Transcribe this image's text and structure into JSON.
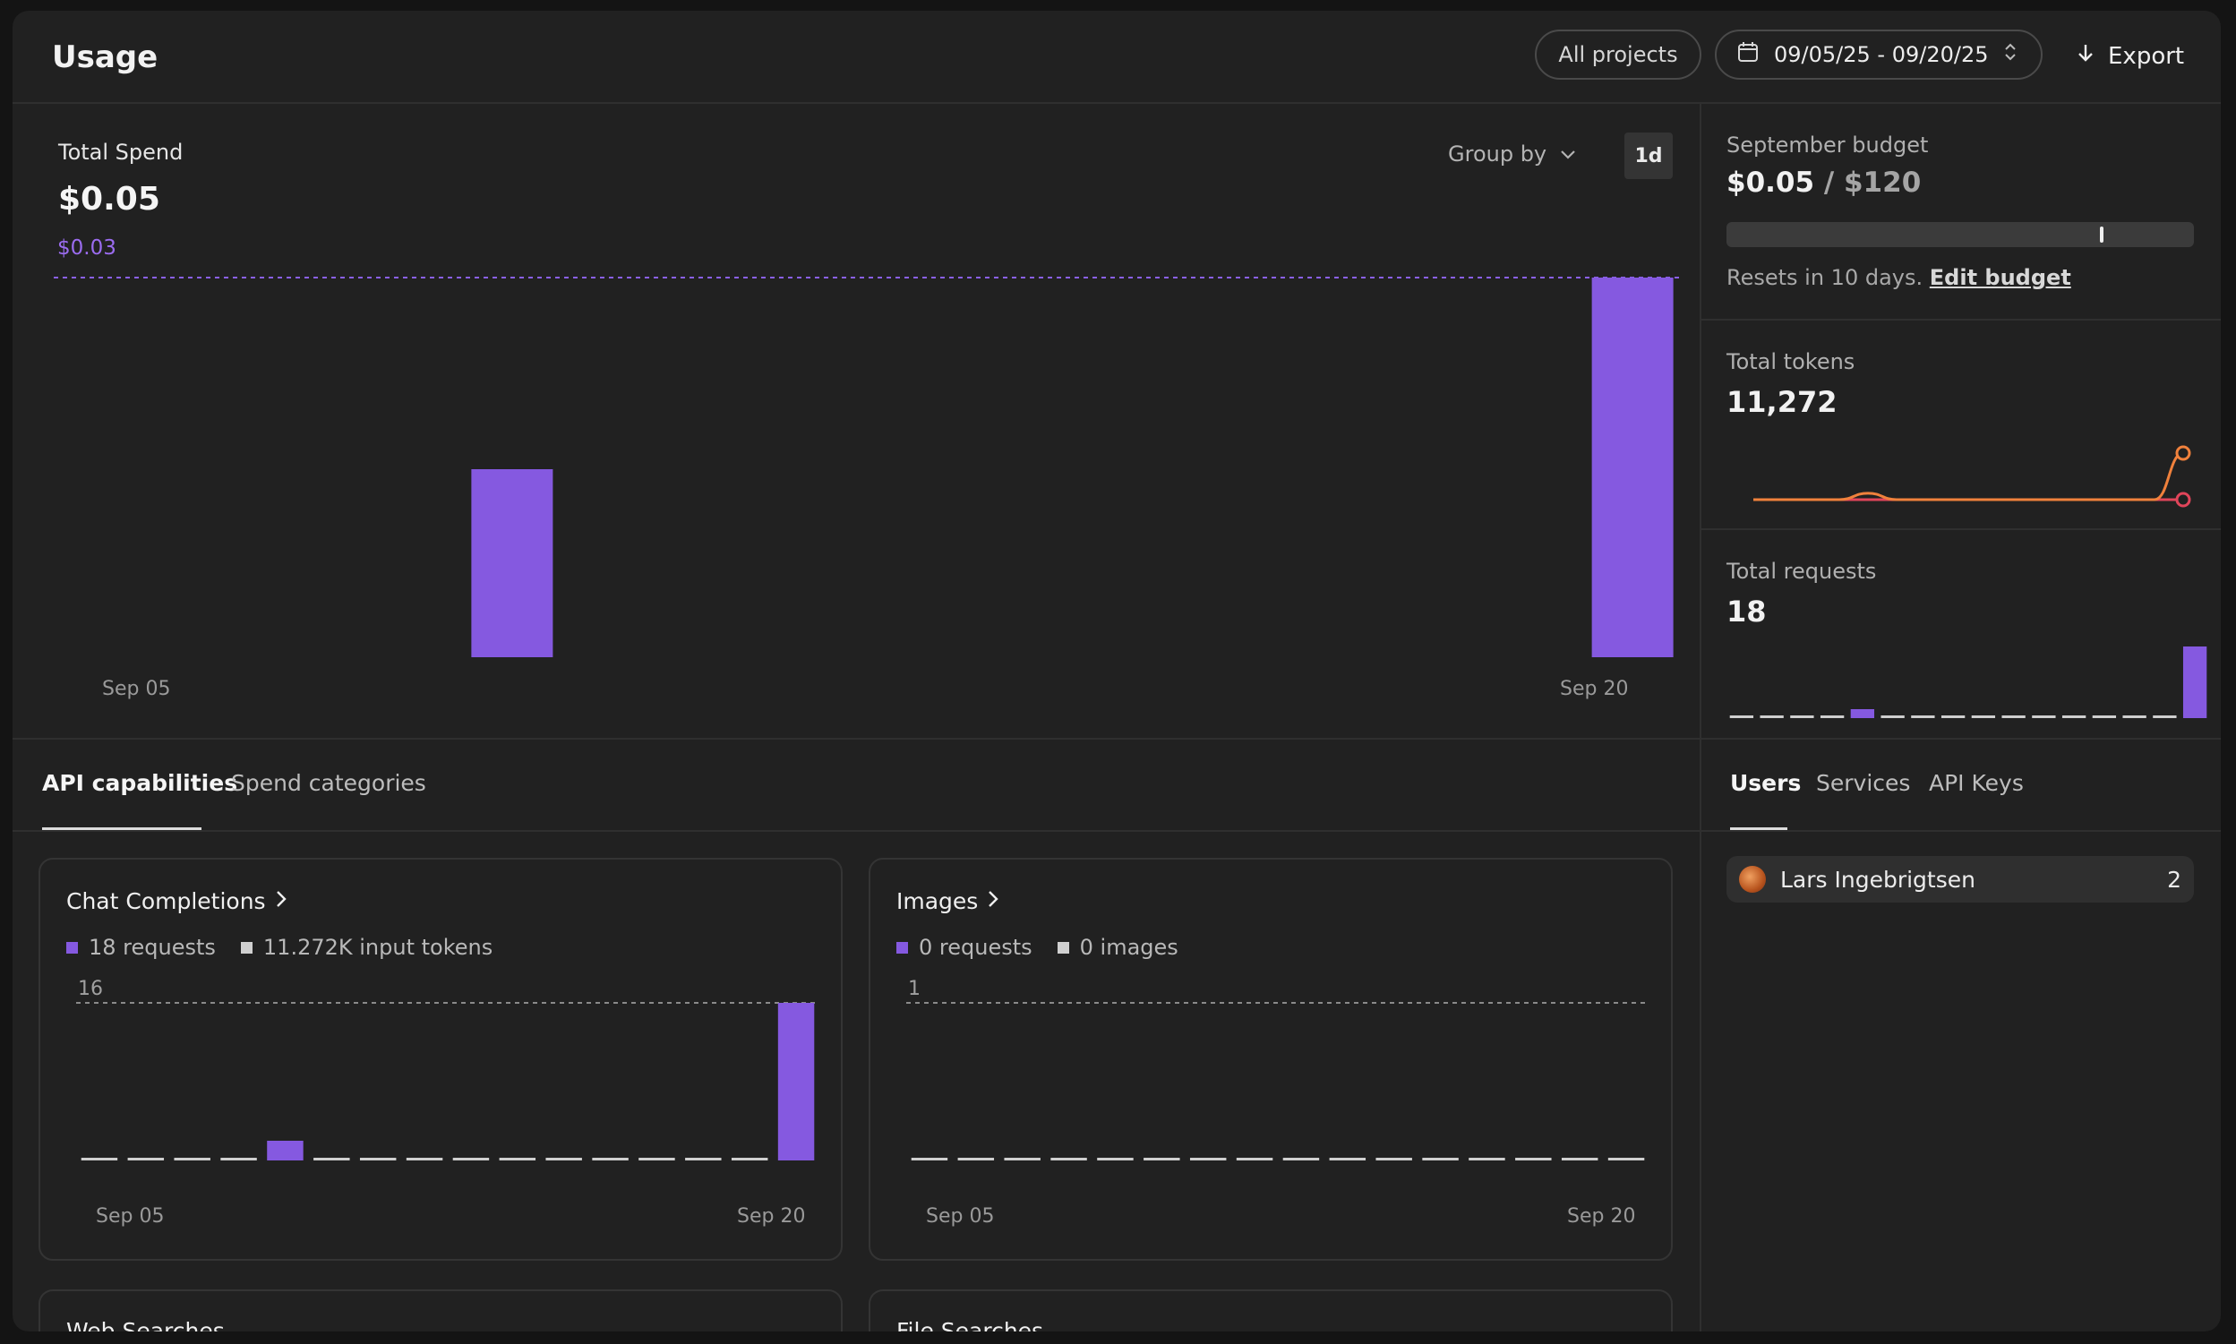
{
  "header": {
    "title": "Usage",
    "projects_label": "All projects",
    "date_range": "09/05/25 - 09/20/25",
    "export_label": "Export"
  },
  "spend": {
    "label": "Total Spend",
    "value": "$0.05",
    "max_label": "$0.03",
    "group_by_label": "Group by",
    "interval_label": "1d",
    "x_start": "Sep 05",
    "x_end": "Sep 20"
  },
  "budget": {
    "label": "September budget",
    "spent": "$0.05",
    "separator": " / ",
    "limit": "$120",
    "fill_fraction": 0.0004,
    "resets_text": "Resets in 10 days.",
    "edit_link": "Edit budget"
  },
  "tokens": {
    "label": "Total tokens",
    "value": "11,272"
  },
  "requests": {
    "label": "Total requests",
    "value": "18"
  },
  "tabs_main": [
    {
      "label": "API capabilities",
      "active": true
    },
    {
      "label": "Spend categories",
      "active": false
    }
  ],
  "tabs_side": [
    {
      "label": "Users",
      "active": true
    },
    {
      "label": "Services",
      "active": false
    },
    {
      "label": "API Keys",
      "active": false
    }
  ],
  "cards": {
    "chat": {
      "title": "Chat Completions",
      "legend_requests": "18 requests",
      "legend_tokens": "11.272K input tokens",
      "y_max": "16",
      "x_start": "Sep 05",
      "x_end": "Sep 20"
    },
    "images": {
      "title": "Images",
      "legend_requests": "0 requests",
      "legend_images": "0 images",
      "y_max": "1",
      "x_start": "Sep 05",
      "x_end": "Sep 20"
    },
    "web": {
      "title": "Web Searches"
    },
    "file": {
      "title": "File Searches"
    }
  },
  "users": [
    {
      "name": "Lars Ingebrigtsen",
      "count": "2"
    }
  ],
  "colors": {
    "accent": "#8559e0",
    "line_red": "#e0455a",
    "line_orange": "#f0813c",
    "zero_bar": "#cfcfcf"
  },
  "chart_data": [
    {
      "type": "bar",
      "title": "Total Spend",
      "categories": [
        "Sep 05",
        "Sep 06",
        "Sep 07",
        "Sep 08",
        "Sep 09",
        "Sep 10",
        "Sep 11",
        "Sep 12",
        "Sep 13",
        "Sep 14",
        "Sep 15",
        "Sep 16",
        "Sep 17",
        "Sep 18",
        "Sep 19",
        "Sep 20"
      ],
      "values": [
        0,
        0,
        0,
        0,
        0.015,
        0,
        0,
        0,
        0,
        0,
        0,
        0,
        0,
        0,
        0,
        0.03
      ],
      "ylim": [
        0,
        0.03
      ],
      "reference_line": 0.03
    },
    {
      "type": "line",
      "title": "Total tokens",
      "categories": [
        "Sep 05",
        "Sep 06",
        "Sep 07",
        "Sep 08",
        "Sep 09",
        "Sep 10",
        "Sep 11",
        "Sep 12",
        "Sep 13",
        "Sep 14",
        "Sep 15",
        "Sep 16",
        "Sep 17",
        "Sep 18",
        "Sep 19",
        "Sep 20"
      ],
      "series": [
        {
          "values": [
            0,
            0,
            0,
            0,
            250,
            0,
            0,
            0,
            0,
            0,
            0,
            0,
            0,
            0,
            0,
            11000
          ]
        },
        {
          "values": [
            0,
            0,
            0,
            0,
            0,
            0,
            0,
            0,
            0,
            0,
            0,
            0,
            0,
            0,
            0,
            0
          ]
        }
      ]
    },
    {
      "type": "bar",
      "title": "Total requests",
      "categories": [
        "Sep 05",
        "Sep 06",
        "Sep 07",
        "Sep 08",
        "Sep 09",
        "Sep 10",
        "Sep 11",
        "Sep 12",
        "Sep 13",
        "Sep 14",
        "Sep 15",
        "Sep 16",
        "Sep 17",
        "Sep 18",
        "Sep 19",
        "Sep 20"
      ],
      "values": [
        0,
        0,
        0,
        0,
        2,
        0,
        0,
        0,
        0,
        0,
        0,
        0,
        0,
        0,
        0,
        16
      ]
    },
    {
      "type": "bar",
      "title": "Chat Completions",
      "categories": [
        "Sep 05",
        "Sep 06",
        "Sep 07",
        "Sep 08",
        "Sep 09",
        "Sep 10",
        "Sep 11",
        "Sep 12",
        "Sep 13",
        "Sep 14",
        "Sep 15",
        "Sep 16",
        "Sep 17",
        "Sep 18",
        "Sep 19",
        "Sep 20"
      ],
      "values": [
        0,
        0,
        0,
        0,
        2,
        0,
        0,
        0,
        0,
        0,
        0,
        0,
        0,
        0,
        0,
        16
      ],
      "ylim": [
        0,
        16
      ]
    },
    {
      "type": "bar",
      "title": "Images",
      "categories": [
        "Sep 05",
        "Sep 06",
        "Sep 07",
        "Sep 08",
        "Sep 09",
        "Sep 10",
        "Sep 11",
        "Sep 12",
        "Sep 13",
        "Sep 14",
        "Sep 15",
        "Sep 16",
        "Sep 17",
        "Sep 18",
        "Sep 19",
        "Sep 20"
      ],
      "values": [
        0,
        0,
        0,
        0,
        0,
        0,
        0,
        0,
        0,
        0,
        0,
        0,
        0,
        0,
        0,
        0
      ],
      "ylim": [
        0,
        1
      ]
    }
  ]
}
